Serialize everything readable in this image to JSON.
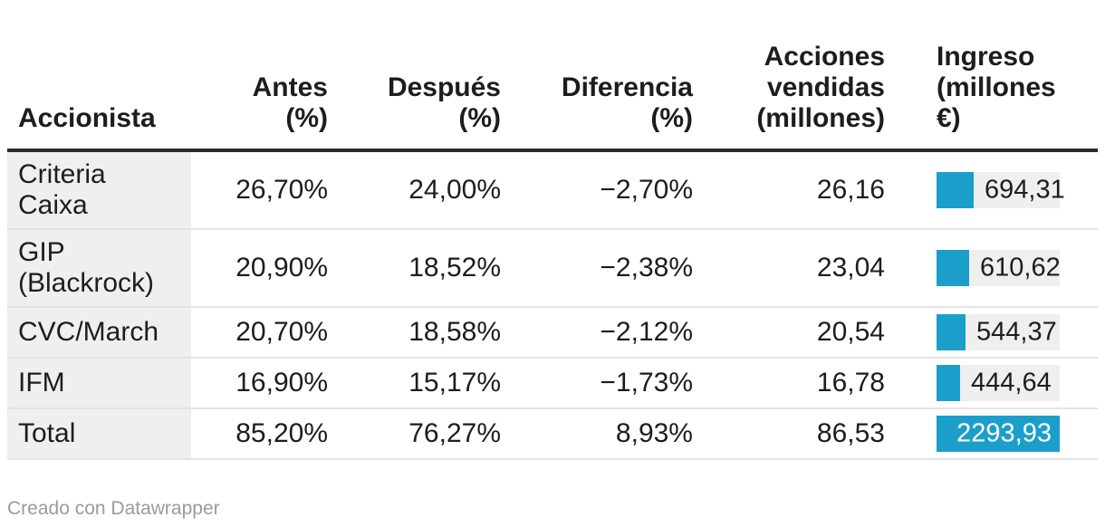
{
  "header": {
    "columns": [
      "Accionista",
      "Antes\n(%)",
      "Después\n(%)",
      "Diferencia\n(%)",
      "Acciones\nvendidas\n(millones)",
      "Ingreso\n(millones\n€)"
    ]
  },
  "table": {
    "bar_max": 2293.93,
    "rows": [
      {
        "label": "Criteria Caixa",
        "antes": "26,70%",
        "despues": "24,00%",
        "diferencia": "−2,70%",
        "acciones": "26,16",
        "ingreso": "694,31",
        "ingreso_value": 694.31
      },
      {
        "label": "GIP (Blackrock)",
        "antes": "20,90%",
        "despues": "18,52%",
        "diferencia": "−2,38%",
        "acciones": "23,04",
        "ingreso": "610,62",
        "ingreso_value": 610.62
      },
      {
        "label": "CVC/March",
        "antes": "20,70%",
        "despues": "18,58%",
        "diferencia": "−2,12%",
        "acciones": "20,54",
        "ingreso": "544,37",
        "ingreso_value": 544.37
      },
      {
        "label": "IFM",
        "antes": "16,90%",
        "despues": "15,17%",
        "diferencia": "−1,73%",
        "acciones": "16,78",
        "ingreso": "444,64",
        "ingreso_value": 444.64
      },
      {
        "label": "Total",
        "antes": "85,20%",
        "despues": "76,27%",
        "diferencia": "8,93%",
        "acciones": "86,53",
        "ingreso": "2293,93",
        "ingreso_value": 2293.93
      }
    ]
  },
  "colors": {
    "bar": "#1b9fca",
    "bar_track": "#efefef",
    "label_column_bg": "#efefef",
    "header_rule": "#2b2b2b",
    "row_divider": "#e4e4e4",
    "text": "#1d1d1d",
    "footer_text": "#9b9b9b",
    "bar_label_inside": "#ffffff"
  },
  "footer": {
    "text": "Creado con Datawrapper"
  },
  "chart_data": {
    "type": "table",
    "title": "",
    "columns": [
      "Accionista",
      "Antes (%)",
      "Después (%)",
      "Diferencia (%)",
      "Acciones vendidas (millones)",
      "Ingreso (millones €)"
    ],
    "rows": [
      [
        "Criteria Caixa",
        26.7,
        24.0,
        -2.7,
        26.16,
        694.31
      ],
      [
        "GIP (Blackrock)",
        20.9,
        18.52,
        -2.38,
        23.04,
        610.62
      ],
      [
        "CVC/March",
        20.7,
        18.58,
        -2.12,
        20.54,
        544.37
      ],
      [
        "IFM",
        16.9,
        15.17,
        -1.73,
        16.78,
        444.64
      ],
      [
        "Total",
        85.2,
        76.27,
        8.93,
        86.53,
        2293.93
      ]
    ],
    "number_format": "es-ES decimal comma",
    "embedded_bars": {
      "column": "Ingreso (millones €)",
      "values": [
        694.31,
        610.62,
        544.37,
        444.64,
        2293.93
      ],
      "max": 2293.93,
      "bar_color": "#1b9fca",
      "note": "bar width proportional to value; max-value row (Total) filled with label inside in white"
    },
    "legend": "none",
    "grid": "horizontal row dividers only"
  }
}
